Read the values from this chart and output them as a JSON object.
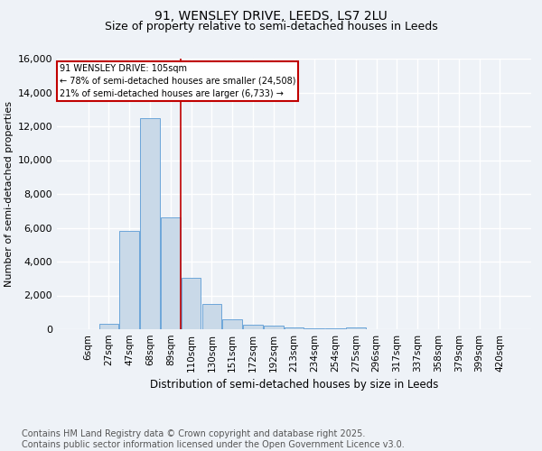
{
  "title": "91, WENSLEY DRIVE, LEEDS, LS7 2LU",
  "subtitle": "Size of property relative to semi-detached houses in Leeds",
  "xlabel": "Distribution of semi-detached houses by size in Leeds",
  "ylabel": "Number of semi-detached properties",
  "bin_labels": [
    "6sqm",
    "27sqm",
    "47sqm",
    "68sqm",
    "89sqm",
    "110sqm",
    "130sqm",
    "151sqm",
    "172sqm",
    "192sqm",
    "213sqm",
    "234sqm",
    "254sqm",
    "275sqm",
    "296sqm",
    "317sqm",
    "337sqm",
    "358sqm",
    "379sqm",
    "399sqm",
    "420sqm"
  ],
  "bin_values": [
    0,
    300,
    5800,
    12500,
    6600,
    3050,
    1500,
    600,
    250,
    200,
    100,
    50,
    50,
    100,
    0,
    0,
    0,
    0,
    0,
    0,
    0
  ],
  "bar_color": "#c9d9e8",
  "bar_edge_color": "#5b9bd5",
  "vline_x": 4.5,
  "vline_color": "#c00000",
  "annotation_box_text": "91 WENSLEY DRIVE: 105sqm\n← 78% of semi-detached houses are smaller (24,508)\n21% of semi-detached houses are larger (6,733) →",
  "annotation_box_color": "#c00000",
  "footer_text": "Contains HM Land Registry data © Crown copyright and database right 2025.\nContains public sector information licensed under the Open Government Licence v3.0.",
  "ylim": [
    0,
    16000
  ],
  "yticks": [
    0,
    2000,
    4000,
    6000,
    8000,
    10000,
    12000,
    14000,
    16000
  ],
  "background_color": "#eef2f7",
  "grid_color": "#ffffff",
  "title_fontsize": 10,
  "subtitle_fontsize": 9,
  "footer_fontsize": 7
}
